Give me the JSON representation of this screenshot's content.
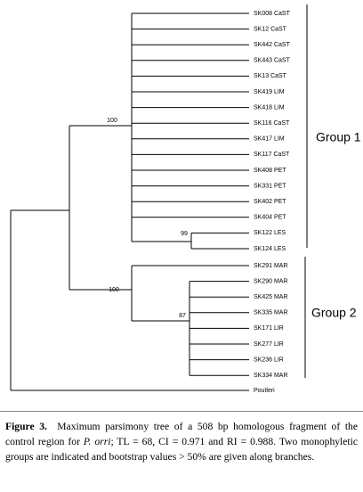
{
  "tree": {
    "leaves": [
      "SK008 CaST",
      "SK12 CaST",
      "SK442 CaST",
      "SK443 CaST",
      "SK13 CaST",
      "SK419 LIM",
      "SK418 LIM",
      "SK116 CaST",
      "SK417 LIM",
      "SK117 CaST",
      "SK408 PET",
      "SK331 PET",
      "SK402 PET",
      "SK404 PET",
      "SK122 LES",
      "SK124 LES",
      "SK291 MAR",
      "SK290 MAR",
      "SK425 MAR",
      "SK335 MAR",
      "SK171 LIR",
      "SK277 LIR",
      "SK236 LIR",
      "SK334 MAR",
      "Poutleri"
    ],
    "bootstrap": [
      100,
      99,
      100,
      87
    ],
    "groups": [
      "Group 1",
      "Group 2"
    ]
  },
  "caption": {
    "label": "Figure 3.",
    "text_before": "Maximum parsimony tree of a 508 bp homologous fragment of the control region for",
    "species": "P. orri",
    "text_after": "; TL = 68, CI = 0.971 and RI = 0.988. Two monophyletic groups are indicated and bootstrap values > 50% are given along branches."
  }
}
